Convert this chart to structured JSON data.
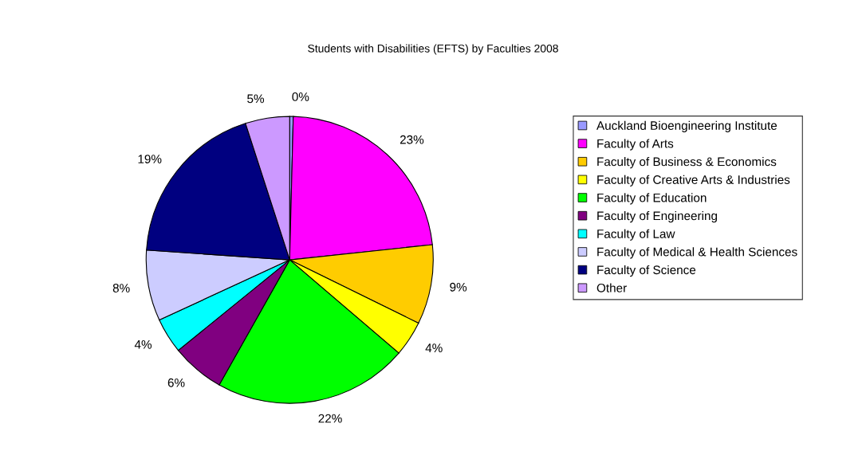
{
  "chart_data": {
    "type": "pie",
    "title": "Students with Disabilities (EFTS) by Faculties 2008",
    "categories": [
      "Auckland Bioengineering Institute",
      "Faculty of Arts",
      "Faculty of Business & Economics",
      "Faculty of Creative Arts & Industries",
      "Faculty of Education",
      "Faculty of Engineering",
      "Faculty of Law",
      "Faculty of Medical & Health Sciences",
      "Faculty of Science",
      "Other"
    ],
    "values": [
      0.4,
      23,
      9,
      4,
      22,
      6,
      4,
      8,
      19,
      5
    ],
    "value_labels": [
      "0%",
      "23%",
      "9%",
      "4%",
      "22%",
      "6%",
      "4%",
      "8%",
      "19%",
      "5%"
    ],
    "colors": [
      "#9999ff",
      "#ff00ff",
      "#ffcc00",
      "#ffff00",
      "#00ff00",
      "#800080",
      "#00ffff",
      "#ccccff",
      "#000080",
      "#cc99ff"
    ],
    "legend": "right"
  }
}
